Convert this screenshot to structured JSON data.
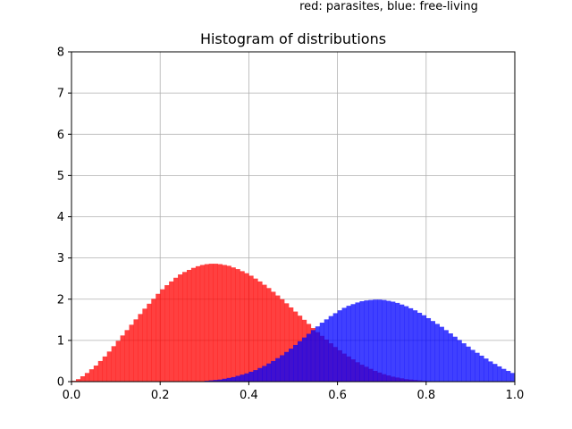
{
  "chart_data": {
    "type": "bar",
    "title": "Histogram of distributions",
    "annotation": "red: parasites, blue: free-living",
    "xlabel": "",
    "ylabel": "",
    "xlim": [
      0.0,
      1.0
    ],
    "ylim": [
      0,
      8
    ],
    "xticks": [
      "0.0",
      "0.2",
      "0.4",
      "0.6",
      "0.8",
      "1.0"
    ],
    "xtick_values": [
      0.0,
      0.2,
      0.4,
      0.6,
      0.8,
      1.0
    ],
    "yticks": [
      "0",
      "1",
      "2",
      "3",
      "4",
      "5",
      "6",
      "7",
      "8"
    ],
    "ytick_values": [
      0,
      1,
      2,
      3,
      4,
      5,
      6,
      7,
      8
    ],
    "grid": true,
    "bin_width": 0.01,
    "series": [
      {
        "color": "#ff0000",
        "alpha": 0.75,
        "bin_start": 0.0,
        "values": [
          0.02,
          0.06,
          0.13,
          0.21,
          0.3,
          0.39,
          0.5,
          0.61,
          0.73,
          0.86,
          0.99,
          1.12,
          1.25,
          1.38,
          1.51,
          1.64,
          1.77,
          1.89,
          2.01,
          2.13,
          2.24,
          2.34,
          2.43,
          2.52,
          2.6,
          2.66,
          2.71,
          2.76,
          2.8,
          2.83,
          2.85,
          2.86,
          2.86,
          2.85,
          2.83,
          2.81,
          2.77,
          2.73,
          2.68,
          2.63,
          2.57,
          2.5,
          2.43,
          2.35,
          2.27,
          2.18,
          2.09,
          2,
          1.9,
          1.8,
          1.7,
          1.6,
          1.5,
          1.4,
          1.3,
          1.2,
          1.11,
          1.02,
          0.93,
          0.84,
          0.76,
          0.68,
          0.61,
          0.54,
          0.47,
          0.41,
          0.36,
          0.31,
          0.26,
          0.22,
          0.18,
          0.15,
          0.12,
          0.1,
          0.08,
          0.06,
          0.05,
          0.04,
          0.03,
          0.02,
          0.01,
          0.01,
          0.01,
          0,
          0,
          0,
          0,
          0,
          0,
          0,
          0,
          0,
          0,
          0,
          0,
          0,
          0,
          0,
          0,
          0
        ]
      },
      {
        "color": "#0000ff",
        "alpha": 0.75,
        "bin_start": 0.0,
        "values": [
          0,
          0,
          0,
          0,
          0,
          0,
          0,
          0,
          0,
          0,
          0,
          0,
          0,
          0,
          0,
          0,
          0,
          0,
          0,
          0,
          0,
          0,
          0,
          0,
          0,
          0,
          0,
          0,
          0,
          0.01,
          0.02,
          0.03,
          0.04,
          0.05,
          0.07,
          0.09,
          0.11,
          0.14,
          0.17,
          0.2,
          0.24,
          0.28,
          0.33,
          0.38,
          0.44,
          0.5,
          0.57,
          0.64,
          0.72,
          0.8,
          0.89,
          0.98,
          1.07,
          1.16,
          1.25,
          1.34,
          1.43,
          1.51,
          1.59,
          1.66,
          1.73,
          1.79,
          1.84,
          1.88,
          1.92,
          1.95,
          1.97,
          1.98,
          1.99,
          1.99,
          1.98,
          1.96,
          1.94,
          1.91,
          1.87,
          1.83,
          1.78,
          1.73,
          1.67,
          1.61,
          1.54,
          1.47,
          1.4,
          1.33,
          1.25,
          1.17,
          1.09,
          1.01,
          0.93,
          0.85,
          0.77,
          0.7,
          0.63,
          0.56,
          0.49,
          0.43,
          0.37,
          0.31,
          0.26,
          0.21
        ]
      }
    ]
  }
}
